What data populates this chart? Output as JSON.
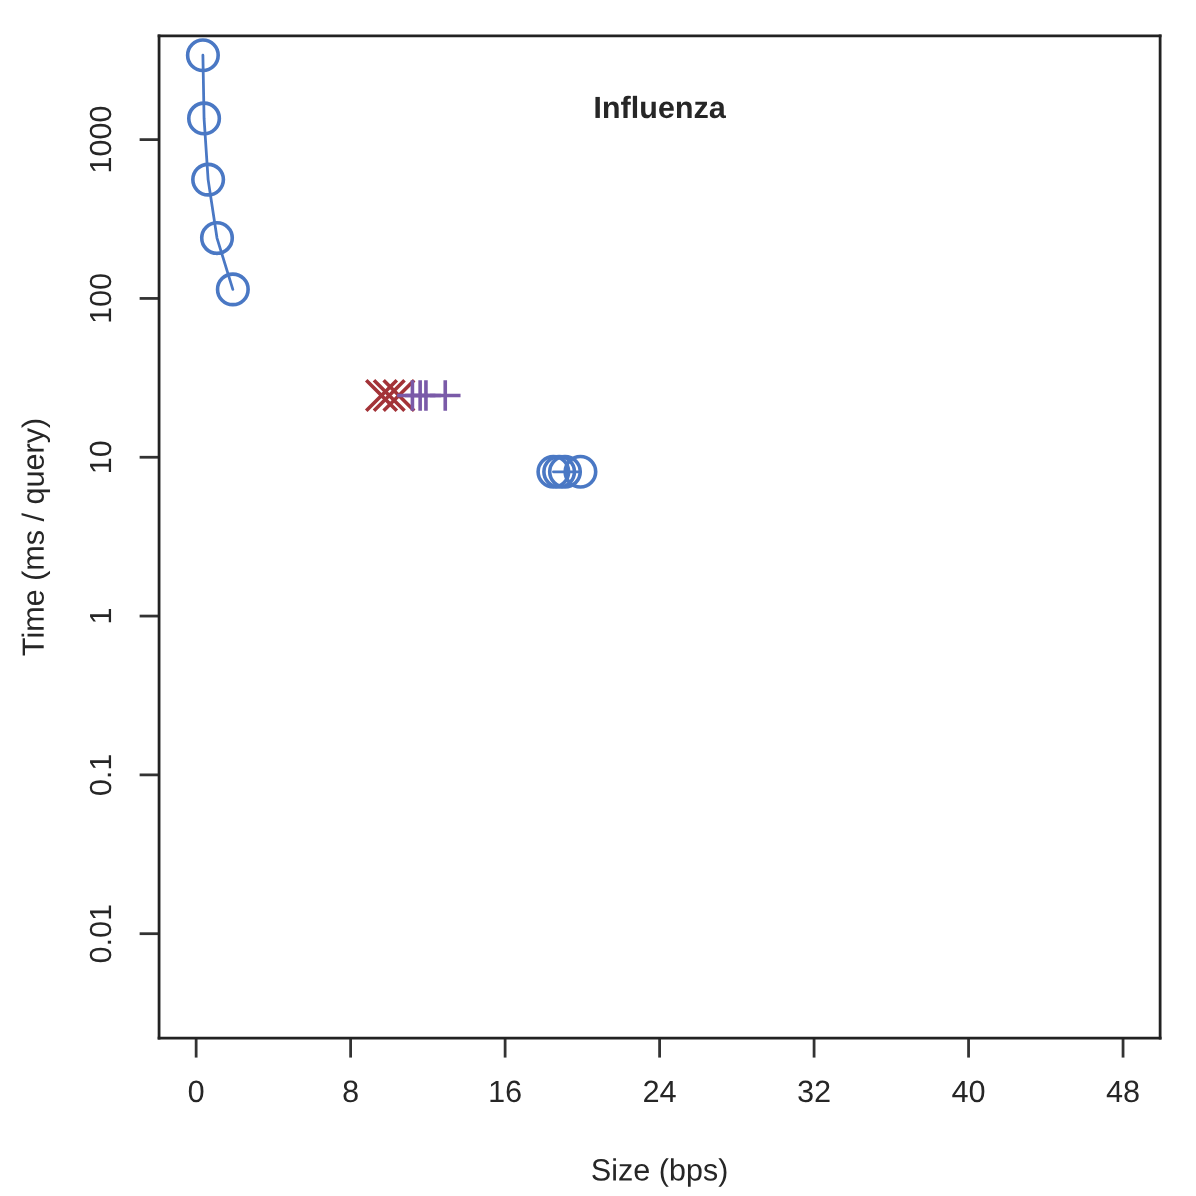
{
  "chart_data": {
    "type": "line",
    "title": "Influenza",
    "xlabel": "Size (bps)",
    "ylabel": "Time (ms / query)",
    "xlim": [
      -1.92,
      49.92
    ],
    "xticks": [
      0,
      8,
      16,
      24,
      32,
      40,
      48
    ],
    "ylim": [
      0.0022,
      4500
    ],
    "yticks": [
      0.01,
      0.1,
      1,
      10,
      100,
      1000
    ],
    "log": "y",
    "grid": false,
    "series": [
      {
        "color": "#4a78c4",
        "marker": "circle",
        "line_style": "solid",
        "x": [
          0.35,
          0.41,
          0.62,
          1.08,
          1.9
        ],
        "values": [
          3400,
          1360,
          560,
          240,
          114
        ]
      },
      {
        "color": "#4a78c4",
        "marker": "circle",
        "line_style": "solid",
        "x": [
          18.5,
          18.8,
          19.1,
          19.9
        ],
        "values": [
          8.1,
          8.1,
          8.1,
          8.1
        ]
      },
      {
        "type": "scatter",
        "color": "#a33338",
        "marker": "cross",
        "x": [
          9.6,
          10.0,
          10.5
        ],
        "values": [
          24.5,
          24.5,
          24.5
        ]
      },
      {
        "type": "scatter",
        "color": "#7a5aa8",
        "marker": "plus",
        "x": [
          11.2,
          11.6,
          11.9,
          12.9
        ],
        "values": [
          24.5,
          24.5,
          24.5,
          24.5
        ]
      }
    ]
  }
}
